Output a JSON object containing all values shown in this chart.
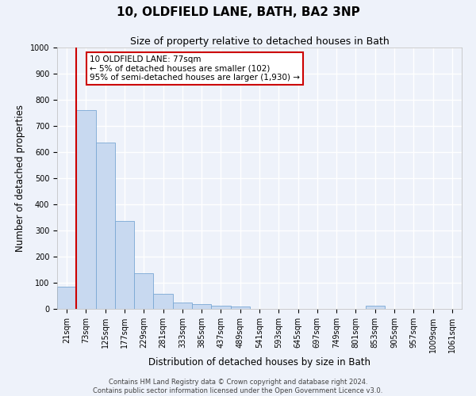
{
  "title": "10, OLDFIELD LANE, BATH, BA2 3NP",
  "subtitle": "Size of property relative to detached houses in Bath",
  "xlabel": "Distribution of detached houses by size in Bath",
  "ylabel": "Number of detached properties",
  "bar_values": [
    85,
    760,
    635,
    335,
    135,
    57,
    25,
    18,
    12,
    10,
    0,
    0,
    0,
    0,
    0,
    0,
    12,
    0,
    0,
    0,
    0
  ],
  "bin_labels": [
    "21sqm",
    "73sqm",
    "125sqm",
    "177sqm",
    "229sqm",
    "281sqm",
    "333sqm",
    "385sqm",
    "437sqm",
    "489sqm",
    "541sqm",
    "593sqm",
    "645sqm",
    "697sqm",
    "749sqm",
    "801sqm",
    "853sqm",
    "905sqm",
    "957sqm",
    "1009sqm",
    "1061sqm"
  ],
  "bar_color": "#c8d9f0",
  "bar_edge_color": "#7aa8d4",
  "vline_color": "#cc0000",
  "annotation_text_line1": "10 OLDFIELD LANE: 77sqm",
  "annotation_text_line2": "← 5% of detached houses are smaller (102)",
  "annotation_text_line3": "95% of semi-detached houses are larger (1,930) →",
  "annotation_box_color": "#ffffff",
  "annotation_border_color": "#cc0000",
  "ylim": [
    0,
    1000
  ],
  "yticks": [
    0,
    100,
    200,
    300,
    400,
    500,
    600,
    700,
    800,
    900,
    1000
  ],
  "footer_line1": "Contains HM Land Registry data © Crown copyright and database right 2024.",
  "footer_line2": "Contains public sector information licensed under the Open Government Licence v3.0.",
  "background_color": "#eef2fa",
  "grid_color": "#ffffff",
  "title_fontsize": 11,
  "subtitle_fontsize": 9,
  "axis_label_fontsize": 8.5,
  "tick_fontsize": 7,
  "footer_fontsize": 6,
  "annot_fontsize": 7.5
}
